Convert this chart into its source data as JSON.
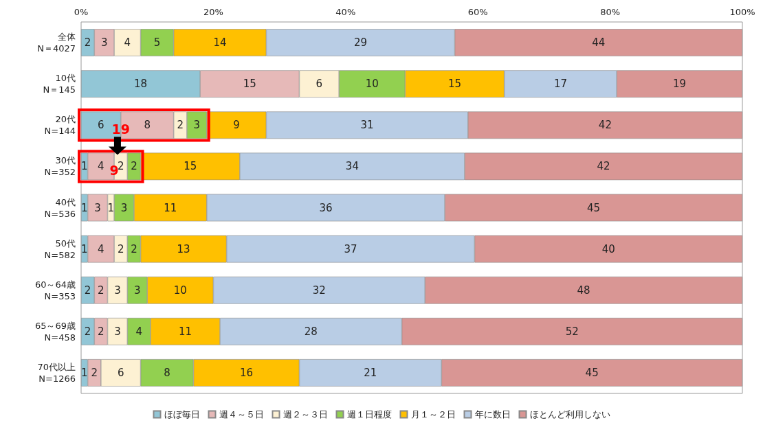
{
  "chart_data": {
    "type": "bar",
    "orientation": "horizontal",
    "stacked": true,
    "legend": "bottom",
    "grid": false,
    "categories": [
      "全体\nN＝4027",
      "10代\nN＝145",
      "20代\nN=144",
      "30代\nN=352",
      "40代\nN=536",
      "50代\nN=582",
      "60～64歳\nN=353",
      "65～69歳\nN=458",
      "70代以上\nN=1266"
    ],
    "xlim": [
      0,
      100
    ],
    "xticks": [
      {
        "value": 0,
        "label": "0%"
      },
      {
        "value": 20,
        "label": "20%"
      },
      {
        "value": 40,
        "label": "40%"
      },
      {
        "value": 60,
        "label": "60%"
      },
      {
        "value": 80,
        "label": "80%"
      },
      {
        "value": 100,
        "label": "100%"
      }
    ],
    "series": [
      {
        "name": "ほぼ毎日",
        "color": "#92c6d6",
        "values": [
          2,
          18,
          6,
          1,
          1,
          1,
          2,
          2,
          1
        ],
        "value_labels": [
          "2",
          "18",
          "6",
          "1",
          "1",
          "1",
          "2",
          "2",
          "1"
        ]
      },
      {
        "name": "週４～５日",
        "color": "#e6b9b8",
        "values": [
          3,
          15,
          8,
          4,
          3,
          4,
          2,
          2,
          2
        ],
        "value_labels": [
          "3",
          "15",
          "8",
          "4",
          "3",
          "4",
          "2",
          "2",
          "2"
        ]
      },
      {
        "name": "週２～３日",
        "color": "#fdf1d3",
        "values": [
          4,
          6,
          2,
          2,
          1,
          2,
          3,
          3,
          6
        ],
        "value_labels": [
          "4",
          "6",
          "2",
          "2",
          "1",
          "2",
          "3",
          "3",
          "6"
        ]
      },
      {
        "name": "週１日程度",
        "color": "#92d050",
        "values": [
          5,
          10,
          3,
          2,
          3,
          2,
          3,
          3.5,
          8
        ],
        "value_labels": [
          "5",
          "10",
          "3",
          "2",
          "3",
          "2",
          "3",
          "4",
          "8"
        ]
      },
      {
        "name": "月１～２日",
        "color": "#ffc000",
        "values": [
          14,
          15,
          9,
          15,
          11,
          13,
          10,
          10.5,
          16
        ],
        "value_labels": [
          "14",
          "15",
          "9",
          "15",
          "11",
          "13",
          "10",
          "11",
          "16"
        ]
      },
      {
        "name": "年に数日",
        "color": "#b9cde5",
        "values": [
          28.5,
          17,
          30.5,
          34,
          36,
          37.5,
          32,
          27.5,
          21.5
        ],
        "value_labels": [
          "29",
          "17",
          "31",
          "34",
          "36",
          "37",
          "32",
          "28",
          "21"
        ]
      },
      {
        "name": "ほとんど利用しない",
        "color": "#d99694",
        "values": [
          43.5,
          19,
          41.5,
          42,
          45,
          40.5,
          48,
          51.5,
          45.5
        ],
        "value_labels": [
          "44",
          "19",
          "42",
          "42",
          "45",
          "40",
          "48",
          "52",
          "45"
        ]
      }
    ],
    "annotations": [
      {
        "text": "19",
        "x": 6,
        "y": "20代\nN=144"
      },
      {
        "text": "9",
        "x": 5,
        "y": "30代\nN=352"
      }
    ]
  }
}
